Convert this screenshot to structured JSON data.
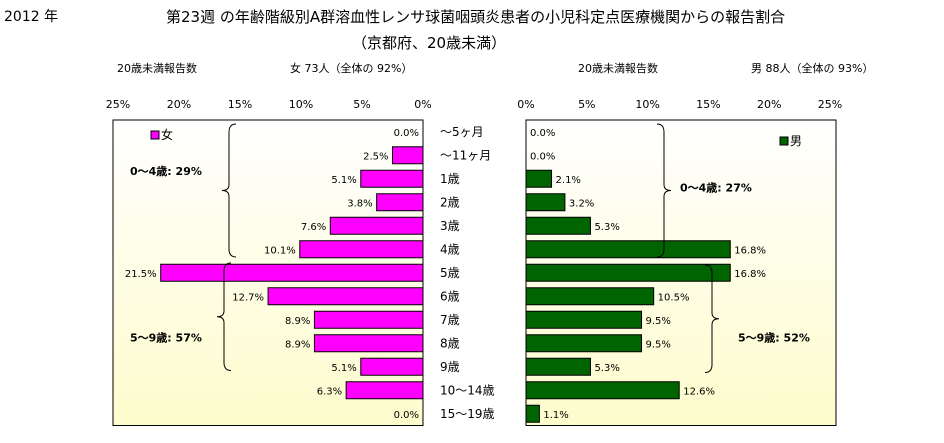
{
  "header": {
    "year": "2012 年",
    "title": "第23週 の年齢階級別A群溶血性レンサ球菌咽頭炎患者の小児科定点医療機関からの報告割合",
    "subtitle": "（京都府、20歳未満）"
  },
  "female_panel": {
    "header_label": "20歳未満報告数",
    "header_count": "女 73人（全体の 92%）"
  },
  "male_panel": {
    "header_label": "20歳未満報告数",
    "header_count": "男 88人（全体の 93%）"
  },
  "colors": {
    "female": "#ff00ff",
    "male": "#006400",
    "plot_bg_top": "#ffffff",
    "plot_bg_bottom": "#fdfccc"
  },
  "chart_data": [
    {
      "type": "bar",
      "orientation": "horizontal",
      "x_direction": "reversed",
      "xlim": [
        0,
        25
      ],
      "ticks": [
        "0%",
        "5%",
        "10%",
        "15%",
        "20%",
        "25%"
      ],
      "tick_values": [
        0,
        5,
        10,
        15,
        20,
        25
      ],
      "categories": [
        "～5ヶ月",
        "～11ヶ月",
        "1歳",
        "2歳",
        "3歳",
        "4歳",
        "5歳",
        "6歳",
        "7歳",
        "8歳",
        "9歳",
        "10～14歳",
        "15～19歳"
      ],
      "series": [
        {
          "name": "女",
          "values": [
            0.0,
            2.5,
            5.1,
            3.8,
            7.6,
            10.1,
            21.5,
            12.7,
            8.9,
            8.9,
            5.1,
            6.3,
            0.0
          ],
          "labels": [
            "0.0%",
            "2.5%",
            "5.1%",
            "3.8%",
            "7.6%",
            "10.1%",
            "21.5%",
            "12.7%",
            "8.9%",
            "8.9%",
            "5.1%",
            "6.3%",
            "0.0%"
          ]
        }
      ],
      "legend": "top-left",
      "annotations": [
        {
          "text": "0～4歳: 29%",
          "from": "～5ヶ月",
          "to": "4歳"
        },
        {
          "text": "5～9歳: 57%",
          "from": "5歳",
          "to": "9歳"
        }
      ]
    },
    {
      "type": "bar",
      "orientation": "horizontal",
      "xlim": [
        0,
        25
      ],
      "ticks": [
        "0%",
        "5%",
        "10%",
        "15%",
        "20%",
        "25%"
      ],
      "tick_values": [
        0,
        5,
        10,
        15,
        20,
        25
      ],
      "categories": [
        "～5ヶ月",
        "～11ヶ月",
        "1歳",
        "2歳",
        "3歳",
        "4歳",
        "5歳",
        "6歳",
        "7歳",
        "8歳",
        "9歳",
        "10～14歳",
        "15～19歳"
      ],
      "series": [
        {
          "name": "男",
          "values": [
            0.0,
            0.0,
            2.1,
            3.2,
            5.3,
            16.8,
            16.8,
            10.5,
            9.5,
            9.5,
            5.3,
            12.6,
            1.1
          ],
          "labels": [
            "0.0%",
            "0.0%",
            "2.1%",
            "3.2%",
            "5.3%",
            "16.8%",
            "16.8%",
            "10.5%",
            "9.5%",
            "9.5%",
            "5.3%",
            "12.6%",
            "1.1%"
          ]
        }
      ],
      "legend": "top-right",
      "annotations": [
        {
          "text": "0～4歳: 27%",
          "from": "～5ヶ月",
          "to": "4歳"
        },
        {
          "text": "5～9歳: 52%",
          "from": "5歳",
          "to": "9歳"
        }
      ]
    }
  ]
}
